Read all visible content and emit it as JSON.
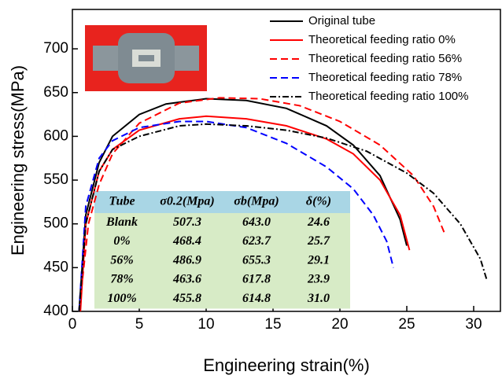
{
  "chart_data": {
    "type": "line",
    "x_label": "Engineering strain(%)",
    "y_label": "Engineering stress(MPa)",
    "xlim": [
      0,
      32
    ],
    "ylim": [
      400,
      745
    ],
    "xticks": [
      0,
      5,
      10,
      15,
      20,
      25,
      30
    ],
    "yticks": [
      400,
      450,
      500,
      550,
      600,
      650,
      700
    ],
    "series": [
      {
        "name": "Original tube",
        "color": "#000000",
        "dash": "solid",
        "x": [
          0.5,
          1,
          2,
          3,
          5,
          7,
          10,
          13,
          16,
          19,
          21,
          23,
          24.5,
          25
        ],
        "values": [
          400,
          510,
          570,
          600,
          625,
          637,
          643,
          641,
          632,
          612,
          590,
          555,
          505,
          475
        ]
      },
      {
        "name": "Theoretical feeding ratio 0%",
        "color": "#ff0000",
        "dash": "solid",
        "x": [
          0.6,
          1,
          2,
          3,
          5,
          8,
          10,
          13,
          16,
          19,
          21,
          23,
          24.5,
          25.2
        ],
        "values": [
          400,
          500,
          560,
          585,
          607,
          620,
          623,
          620,
          612,
          597,
          580,
          550,
          510,
          470
        ]
      },
      {
        "name": "Theoretical feeding ratio 56%",
        "color": "#ff0000",
        "dash": "dash",
        "x": [
          0.5,
          1.2,
          2,
          3,
          5,
          8,
          11,
          14,
          17,
          20,
          23,
          25.5,
          27,
          27.8
        ],
        "values": [
          400,
          500,
          545,
          580,
          615,
          638,
          644,
          643,
          635,
          617,
          590,
          555,
          520,
          490
        ]
      },
      {
        "name": "Theoretical feeding ratio 78%",
        "color": "#0000ff",
        "dash": "dash",
        "x": [
          0.5,
          1,
          2,
          3,
          5,
          8,
          10,
          13,
          16,
          19,
          21,
          22.5,
          23.5,
          24
        ],
        "values": [
          400,
          520,
          575,
          595,
          610,
          617,
          617,
          610,
          592,
          565,
          540,
          510,
          480,
          450
        ]
      },
      {
        "name": "Theoretical feeding ratio 100%",
        "color": "#000000",
        "dash": "dashdot",
        "x": [
          0.5,
          1,
          2,
          3,
          5,
          8,
          10,
          13,
          16,
          19,
          22,
          25,
          27,
          29,
          30.5,
          31
        ],
        "values": [
          400,
          500,
          560,
          585,
          600,
          612,
          614,
          612,
          607,
          598,
          583,
          558,
          535,
          500,
          460,
          435
        ]
      }
    ],
    "table": {
      "header": [
        "Tube",
        "σ0.2(Mpa)",
        "σb(Mpa)",
        "δ(%)"
      ],
      "rows": [
        [
          "Blank",
          "507.3",
          "643.0",
          "24.6"
        ],
        [
          "0%",
          "468.4",
          "623.7",
          "25.7"
        ],
        [
          "56%",
          "486.9",
          "655.3",
          "29.1"
        ],
        [
          "78%",
          "463.6",
          "617.8",
          "23.9"
        ],
        [
          "100%",
          "455.8",
          "614.8",
          "31.0"
        ]
      ]
    }
  }
}
